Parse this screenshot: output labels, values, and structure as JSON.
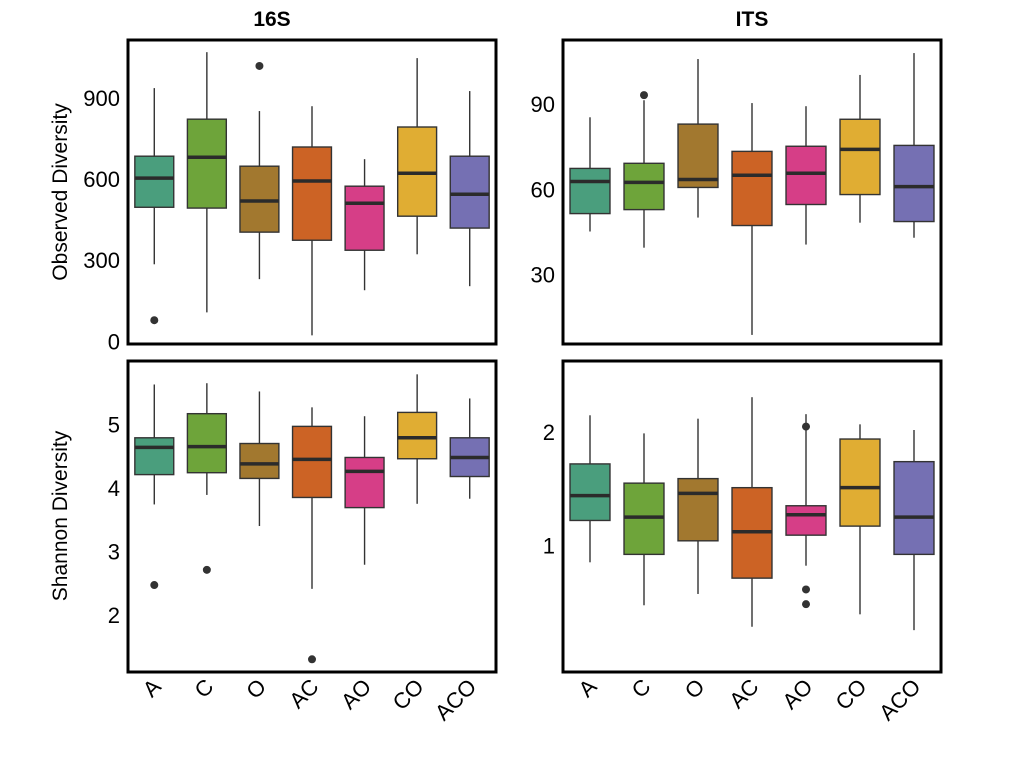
{
  "chart_data": {
    "type": "boxplot",
    "column_titles": [
      "16S",
      "ITS"
    ],
    "row_labels": [
      "Observed Diversity",
      "Shannon Diversity"
    ],
    "categories": [
      "A",
      "C",
      "O",
      "AC",
      "AO",
      "CO",
      "ACO"
    ],
    "colors": [
      "#4a9e7d",
      "#6ea43a",
      "#a2782f",
      "#cc6325",
      "#d63e87",
      "#e0ad33",
      "#7570b3"
    ],
    "panels": [
      {
        "column": "16S",
        "ylabel": "Observed Diversity",
        "ylim": [
          -10,
          1115
        ],
        "yticks": [
          0,
          300,
          600,
          900
        ],
        "ytick_labels": [
          "0",
          "300",
          "600",
          "900"
        ],
        "boxes": [
          {
            "low": 285,
            "q1": 496,
            "median": 604,
            "q3": 685,
            "high": 937,
            "outliers": [
              78
            ]
          },
          {
            "low": 107,
            "q1": 493,
            "median": 681,
            "q3": 822,
            "high": 1070,
            "outliers": []
          },
          {
            "low": 230,
            "q1": 404,
            "median": 519,
            "q3": 648,
            "high": 852,
            "outliers": [
              1019
            ]
          },
          {
            "low": 22,
            "q1": 374,
            "median": 593,
            "q3": 719,
            "high": 870,
            "outliers": []
          },
          {
            "low": 189,
            "q1": 337,
            "median": 511,
            "q3": 574,
            "high": 674,
            "outliers": []
          },
          {
            "low": 322,
            "q1": 463,
            "median": 622,
            "q3": 793,
            "high": 1048,
            "outliers": []
          },
          {
            "low": 204,
            "q1": 419,
            "median": 544,
            "q3": 685,
            "high": 926,
            "outliers": []
          }
        ]
      },
      {
        "column": "ITS",
        "ylabel": "",
        "ylim": [
          5.6,
          112.6
        ],
        "yticks": [
          30,
          60,
          90
        ],
        "ytick_labels": [
          "30",
          "60",
          "90"
        ],
        "boxes": [
          {
            "low": 45.2,
            "q1": 51.5,
            "median": 62.8,
            "q3": 67.4,
            "high": 85.4,
            "outliers": []
          },
          {
            "low": 39.5,
            "q1": 52.9,
            "median": 62.5,
            "q3": 69.2,
            "high": 91.4,
            "outliers": [
              93.2
            ]
          },
          {
            "low": 50.1,
            "q1": 60.7,
            "median": 63.5,
            "q3": 83.0,
            "high": 105.9,
            "outliers": []
          },
          {
            "low": 8.8,
            "q1": 47.3,
            "median": 65.0,
            "q3": 73.4,
            "high": 90.4,
            "outliers": []
          },
          {
            "low": 40.6,
            "q1": 54.7,
            "median": 65.7,
            "q3": 75.2,
            "high": 89.3,
            "outliers": []
          },
          {
            "low": 48.3,
            "q1": 58.2,
            "median": 74.1,
            "q3": 84.7,
            "high": 100.3,
            "outliers": []
          },
          {
            "low": 43.0,
            "q1": 48.7,
            "median": 61.0,
            "q3": 75.5,
            "high": 108.0,
            "outliers": []
          }
        ]
      },
      {
        "column": "16S",
        "ylabel": "Shannon Diversity",
        "ylim": [
          1.1,
          6.0
        ],
        "yticks": [
          2,
          3,
          4,
          5
        ],
        "ytick_labels": [
          "2",
          "3",
          "4",
          "5"
        ],
        "boxes": [
          {
            "low": 3.74,
            "q1": 4.21,
            "median": 4.64,
            "q3": 4.79,
            "high": 5.63,
            "outliers": [
              2.47
            ]
          },
          {
            "low": 3.89,
            "q1": 4.24,
            "median": 4.65,
            "q3": 5.17,
            "high": 5.65,
            "outliers": [
              2.71
            ]
          },
          {
            "low": 3.4,
            "q1": 4.15,
            "median": 4.38,
            "q3": 4.7,
            "high": 5.52,
            "outliers": []
          },
          {
            "low": 2.41,
            "q1": 3.85,
            "median": 4.45,
            "q3": 4.97,
            "high": 5.27,
            "outliers": [
              1.3
            ]
          },
          {
            "low": 2.79,
            "q1": 3.69,
            "median": 4.26,
            "q3": 4.48,
            "high": 5.13,
            "outliers": []
          },
          {
            "low": 3.75,
            "q1": 4.46,
            "median": 4.79,
            "q3": 5.19,
            "high": 5.79,
            "outliers": []
          },
          {
            "low": 3.83,
            "q1": 4.18,
            "median": 4.48,
            "q3": 4.79,
            "high": 5.41,
            "outliers": []
          }
        ]
      },
      {
        "column": "ITS",
        "ylabel": "",
        "ylim": [
          -0.12,
          2.63
        ],
        "yticks": [
          1,
          2
        ],
        "ytick_labels": [
          "1",
          "2"
        ],
        "boxes": [
          {
            "low": 0.85,
            "q1": 1.22,
            "median": 1.44,
            "q3": 1.72,
            "high": 2.15,
            "outliers": []
          },
          {
            "low": 0.47,
            "q1": 0.92,
            "median": 1.25,
            "q3": 1.55,
            "high": 1.99,
            "outliers": []
          },
          {
            "low": 0.57,
            "q1": 1.04,
            "median": 1.46,
            "q3": 1.59,
            "high": 2.12,
            "outliers": []
          },
          {
            "low": 0.28,
            "q1": 0.71,
            "median": 1.12,
            "q3": 1.51,
            "high": 2.31,
            "outliers": []
          },
          {
            "low": 0.82,
            "q1": 1.09,
            "median": 1.27,
            "q3": 1.35,
            "high": 2.16,
            "outliers": [
              2.05,
              0.61,
              0.48
            ]
          },
          {
            "low": 0.39,
            "q1": 1.17,
            "median": 1.51,
            "q3": 1.94,
            "high": 2.07,
            "outliers": []
          },
          {
            "low": 0.25,
            "q1": 0.92,
            "median": 1.25,
            "q3": 1.74,
            "high": 2.02,
            "outliers": []
          }
        ]
      }
    ]
  }
}
